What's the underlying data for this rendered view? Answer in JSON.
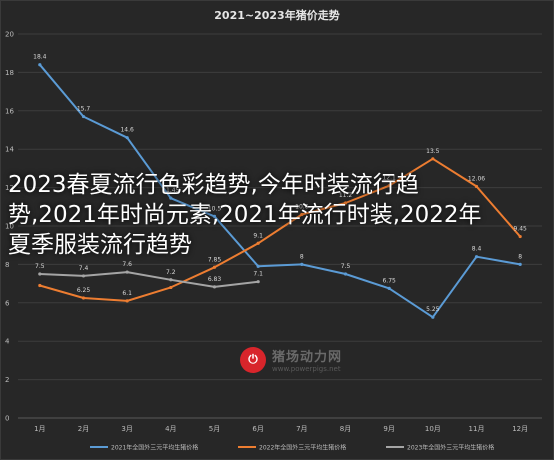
{
  "chart_data": {
    "type": "line",
    "title": "2021~2023年猪价走势",
    "categories": [
      "1月",
      "2月",
      "3月",
      "4月",
      "5月",
      "6月",
      "7月",
      "8月",
      "9月",
      "10月",
      "11月",
      "12月"
    ],
    "ylim": [
      0,
      20
    ],
    "yticks": [
      "0",
      "2",
      "4",
      "6",
      "8",
      "10",
      "12",
      "14",
      "16",
      "18",
      "20"
    ],
    "grid": true,
    "legend_position": "bottom",
    "series": [
      {
        "name": "2021年全国外三元平均生猪价格",
        "color": "#5b9bd5",
        "values": [
          18.4,
          15.7,
          14.6,
          11.45,
          10.5,
          7.9,
          8,
          7.5,
          6.75,
          5.25,
          8.4,
          8
        ],
        "labels": [
          "18.4",
          "15.7",
          "14.6",
          "11.45",
          "10.5",
          "",
          "8",
          "7.5",
          "6.75",
          "5.25",
          "8.4",
          "8"
        ]
      },
      {
        "name": "2022年全国外三元平均生猪价格",
        "color": "#ed7d31",
        "values": [
          6.9,
          6.25,
          6.1,
          6.8,
          7.85,
          9.1,
          10.6,
          11.2,
          12.1,
          13.5,
          12.06,
          9.45
        ],
        "labels": [
          "",
          "6.25",
          "6.1",
          "",
          "7.85",
          "9.1",
          "10.6",
          "11.2",
          "12.1",
          "13.5",
          "12.06",
          "9.45"
        ]
      },
      {
        "name": "2023年全国外三元平均生猪价格",
        "color": "#a5a5a5",
        "values": [
          7.5,
          7.4,
          7.6,
          7.2,
          6.83,
          7.1,
          null,
          null,
          null,
          null,
          null,
          null
        ],
        "labels": [
          "7.5",
          "7.4",
          "7.6",
          "7.2",
          "6.83",
          "7.1",
          "",
          "",
          "",
          "",
          "",
          ""
        ]
      }
    ]
  },
  "overlay_text": "2023春夏流行色彩趋势,今年时装流行趋势,2021年时尚元素,2021年流行时装,2022年夏季服装流行趋势",
  "watermark": {
    "brand": "猪场动力网",
    "url": "www.powerpigs.net"
  }
}
